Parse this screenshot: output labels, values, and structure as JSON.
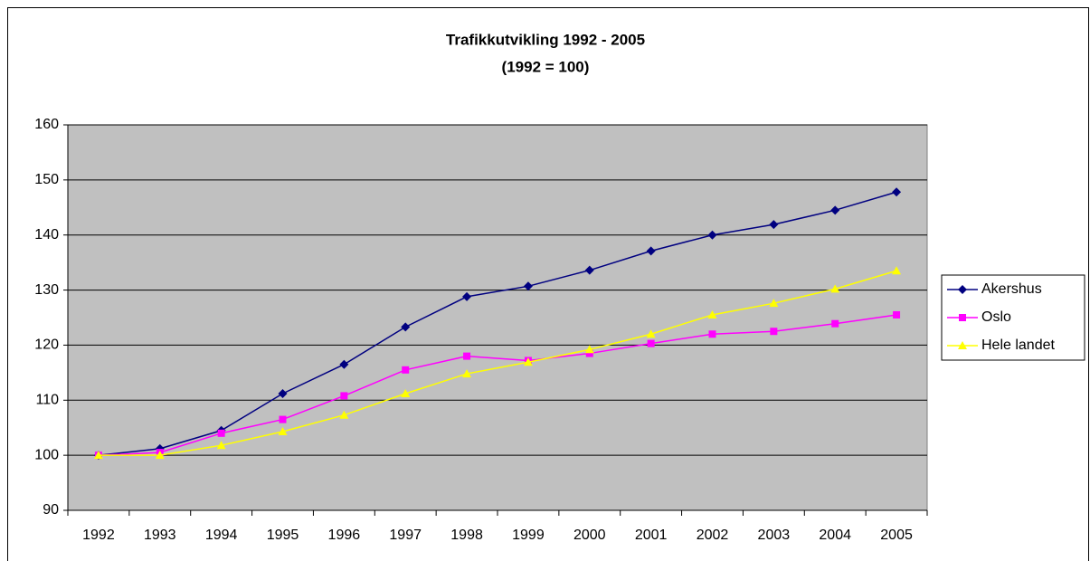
{
  "chart_data": {
    "type": "line",
    "title": "Trafikkutvikling 1992 - 2005",
    "subtitle": "(1992 = 100)",
    "categories": [
      "1992",
      "1993",
      "1994",
      "1995",
      "1996",
      "1997",
      "1998",
      "1999",
      "2000",
      "2001",
      "2002",
      "2003",
      "2004",
      "2005"
    ],
    "series": [
      {
        "name": "Akershus",
        "color": "#000080",
        "marker": "diamond",
        "values": [
          100,
          101.2,
          104.5,
          111.2,
          116.5,
          123.3,
          128.8,
          130.7,
          133.6,
          137.1,
          140,
          141.9,
          144.5,
          147.8
        ]
      },
      {
        "name": "Oslo",
        "color": "#ff00ff",
        "marker": "square",
        "values": [
          100,
          100.5,
          104,
          106.5,
          110.8,
          115.5,
          118,
          117.2,
          118.5,
          120.3,
          122,
          122.5,
          123.9,
          125.5
        ]
      },
      {
        "name": "Hele landet",
        "color": "#ffff00",
        "marker": "triangle",
        "values": [
          100,
          100,
          101.8,
          104.3,
          107.3,
          111.2,
          114.8,
          116.9,
          119.2,
          122,
          125.5,
          127.6,
          130.2,
          133.5
        ]
      }
    ],
    "ylim": [
      90,
      160
    ],
    "yticks": [
      90,
      100,
      110,
      120,
      130,
      140,
      150,
      160
    ],
    "grid": true,
    "legend": "right",
    "plot_background": "#c0c0c0"
  }
}
